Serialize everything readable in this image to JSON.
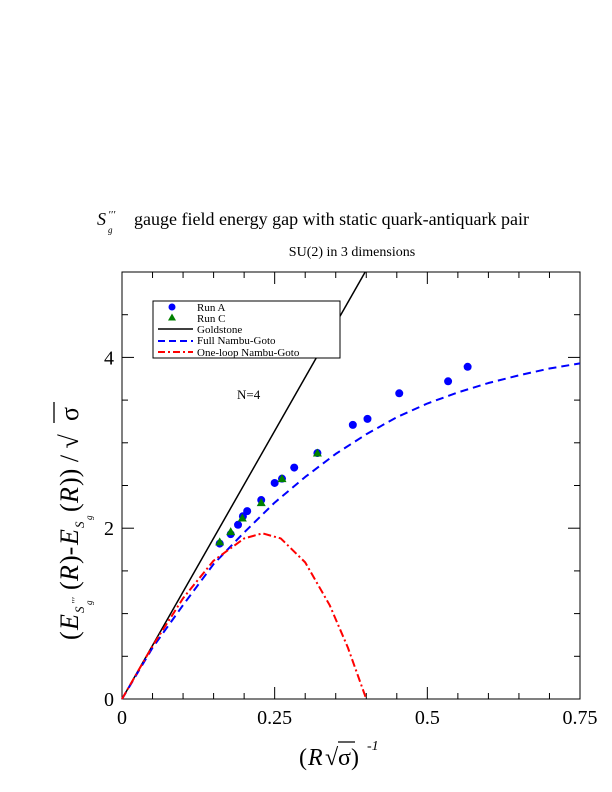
{
  "chart_data": {
    "type": "scatter",
    "title": "gauge field energy gap with static quark-antiquark pair",
    "subtitle": "SU(2) in 3 dimensions",
    "annotation": "N=4",
    "xlim": [
      0,
      0.75
    ],
    "ylim": [
      0,
      5
    ],
    "x_ticks": [
      0,
      0.25,
      0.5,
      0.75
    ],
    "x_tick_labels": [
      "0",
      "0.25",
      "0.5",
      "0.75"
    ],
    "y_ticks": [
      0,
      2,
      4
    ],
    "y_tick_labels": [
      "0",
      "2",
      "4"
    ],
    "grid": false,
    "legend_position": "top-left",
    "colors": {
      "run_a": "#0000ff",
      "run_c": "#008000",
      "goldstone": "#000000",
      "full_ng": "#0000ff",
      "one_loop_ng": "#ff0000"
    },
    "series": [
      {
        "name": "Run A",
        "kind": "points",
        "marker": "circle",
        "x": [
          0.16,
          0.178,
          0.19,
          0.198,
          0.205,
          0.228,
          0.25,
          0.262,
          0.282,
          0.32,
          0.378,
          0.402,
          0.454,
          0.534,
          0.566
        ],
        "y": [
          1.82,
          1.93,
          2.04,
          2.14,
          2.2,
          2.33,
          2.53,
          2.58,
          2.71,
          2.88,
          3.21,
          3.28,
          3.58,
          3.72,
          3.89
        ]
      },
      {
        "name": "Run C",
        "kind": "points",
        "marker": "triangle",
        "x": [
          0.16,
          0.178,
          0.197,
          0.228,
          0.262,
          0.32
        ],
        "y": [
          1.84,
          1.96,
          2.12,
          2.3,
          2.58,
          2.88
        ]
      },
      {
        "name": "Goldstone",
        "kind": "line",
        "style": "solid",
        "x": [
          0,
          0.403
        ],
        "y": [
          0,
          5.06
        ]
      },
      {
        "name": "Full Nambu-Goto",
        "kind": "line",
        "style": "dashed",
        "x": [
          0,
          0.05,
          0.1,
          0.15,
          0.2,
          0.25,
          0.3,
          0.35,
          0.4,
          0.45,
          0.5,
          0.55,
          0.6,
          0.65,
          0.7,
          0.75
        ],
        "y": [
          0,
          0.6,
          1.1,
          1.58,
          1.95,
          2.3,
          2.6,
          2.87,
          3.1,
          3.3,
          3.46,
          3.59,
          3.7,
          3.79,
          3.87,
          3.93
        ]
      },
      {
        "name": "One-loop Nambu-Goto",
        "kind": "line",
        "style": "dashdot",
        "x": [
          0,
          0.05,
          0.1,
          0.15,
          0.2,
          0.23,
          0.26,
          0.3,
          0.34,
          0.37,
          0.39,
          0.4
        ],
        "y": [
          0,
          0.62,
          1.18,
          1.62,
          1.88,
          1.94,
          1.88,
          1.6,
          1.1,
          0.6,
          0.2,
          0.0
        ]
      }
    ]
  }
}
